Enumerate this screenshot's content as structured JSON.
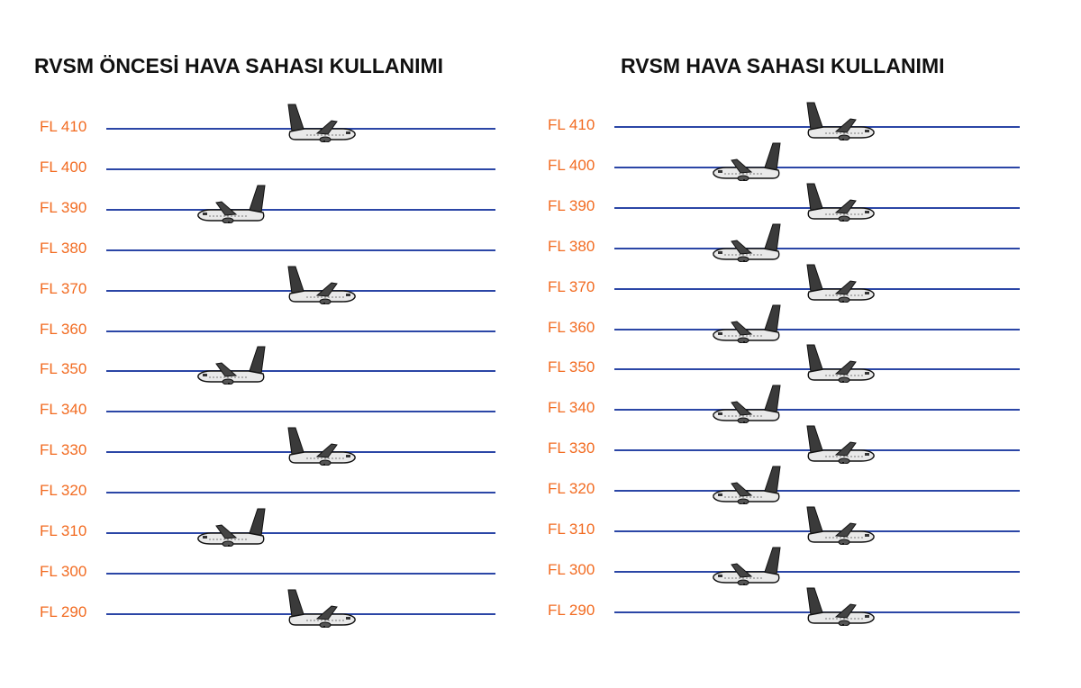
{
  "left_panel": {
    "title": "RVSM ÖNCESİ HAVA SAHASI KULLANIMI",
    "levels": [
      {
        "label": "FL 410",
        "aircraft": "right"
      },
      {
        "label": "FL 400",
        "aircraft": "none"
      },
      {
        "label": "FL 390",
        "aircraft": "left"
      },
      {
        "label": "FL 380",
        "aircraft": "none"
      },
      {
        "label": "FL 370",
        "aircraft": "right"
      },
      {
        "label": "FL 360",
        "aircraft": "none"
      },
      {
        "label": "FL 350",
        "aircraft": "left"
      },
      {
        "label": "FL 340",
        "aircraft": "none"
      },
      {
        "label": "FL 330",
        "aircraft": "right"
      },
      {
        "label": "FL 320",
        "aircraft": "none"
      },
      {
        "label": "FL 310",
        "aircraft": "left"
      },
      {
        "label": "FL 300",
        "aircraft": "none"
      },
      {
        "label": "FL 290",
        "aircraft": "right"
      }
    ]
  },
  "right_panel": {
    "title": "RVSM HAVA SAHASI KULLANIMI",
    "levels": [
      {
        "label": "FL 410",
        "aircraft": "right"
      },
      {
        "label": "FL 400",
        "aircraft": "left"
      },
      {
        "label": "FL 390",
        "aircraft": "right"
      },
      {
        "label": "FL 380",
        "aircraft": "left"
      },
      {
        "label": "FL 370",
        "aircraft": "right"
      },
      {
        "label": "FL 360",
        "aircraft": "left"
      },
      {
        "label": "FL 350",
        "aircraft": "right"
      },
      {
        "label": "FL 340",
        "aircraft": "left"
      },
      {
        "label": "FL 330",
        "aircraft": "right"
      },
      {
        "label": "FL 320",
        "aircraft": "left"
      },
      {
        "label": "FL 310",
        "aircraft": "right"
      },
      {
        "label": "FL 300",
        "aircraft": "left"
      },
      {
        "label": "FL 290",
        "aircraft": "right"
      }
    ]
  },
  "colors": {
    "label": "#f26b21",
    "line": "#2b46a6",
    "title": "#111111"
  },
  "icons": {
    "aircraft": "airplane-icon"
  }
}
